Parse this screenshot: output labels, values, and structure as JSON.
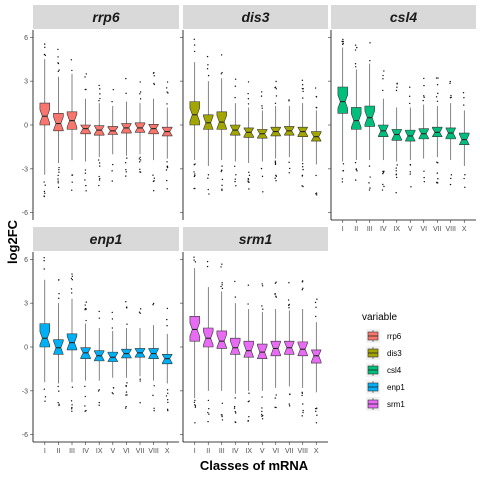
{
  "chart_data": {
    "type": "boxplot",
    "facets": [
      "rrp6",
      "dis3",
      "csl4",
      "enp1",
      "srm1"
    ],
    "categories": [
      "I",
      "II",
      "III",
      "IV",
      "IX",
      "V",
      "VI",
      "VII",
      "VIII",
      "X"
    ],
    "xlabel": "Classes of mRNA",
    "ylabel": "log2FC",
    "ylim": [
      -6.5,
      6.5
    ],
    "yticks": [
      -6,
      -3,
      0,
      3,
      6
    ],
    "yticklabels": [
      "-6",
      "-3",
      "0",
      "3",
      "6"
    ],
    "notched": true,
    "grid": false,
    "legend": {
      "title": "variable",
      "position": "right",
      "entries": [
        "rrp6",
        "dis3",
        "csl4",
        "enp1",
        "srm1"
      ]
    },
    "colors": {
      "rrp6": "#F8766D",
      "dis3": "#A3A500",
      "csl4": "#00BF7D",
      "enp1": "#00B0F6",
      "srm1": "#E76BF3"
    },
    "series": [
      {
        "name": "rrp6",
        "boxes": [
          {
            "min": -3.4,
            "q1": 0.0,
            "median": 0.6,
            "q3": 1.5,
            "max": 4.5
          },
          {
            "min": -2.6,
            "q1": -0.4,
            "median": 0.1,
            "q3": 0.8,
            "max": 3.3
          },
          {
            "min": -2.4,
            "q1": -0.3,
            "median": 0.3,
            "q3": 0.9,
            "max": 3.5
          },
          {
            "min": -2.5,
            "q1": -0.6,
            "median": -0.25,
            "q3": 0.0,
            "max": 1.8
          },
          {
            "min": -2.2,
            "q1": -0.7,
            "median": -0.35,
            "q3": -0.05,
            "max": 1.5
          },
          {
            "min": -2.0,
            "q1": -0.65,
            "median": -0.4,
            "q3": -0.1,
            "max": 1.3
          },
          {
            "min": -2.1,
            "q1": -0.55,
            "median": -0.2,
            "q3": 0.1,
            "max": 1.6
          },
          {
            "min": -2.0,
            "q1": -0.5,
            "median": -0.2,
            "q3": 0.15,
            "max": 1.5
          },
          {
            "min": -2.4,
            "q1": -0.6,
            "median": -0.25,
            "q3": 0.05,
            "max": 1.8
          },
          {
            "min": -2.3,
            "q1": -0.75,
            "median": -0.45,
            "q3": -0.15,
            "max": 1.2
          }
        ]
      },
      {
        "name": "dis3",
        "boxes": [
          {
            "min": -2.4,
            "q1": 0.0,
            "median": 0.7,
            "q3": 1.6,
            "max": 4.3
          },
          {
            "min": -2.8,
            "q1": -0.3,
            "median": 0.15,
            "q3": 0.7,
            "max": 3.0
          },
          {
            "min": -2.4,
            "q1": -0.3,
            "median": 0.2,
            "q3": 0.9,
            "max": 3.2
          },
          {
            "min": -2.5,
            "q1": -0.7,
            "median": -0.35,
            "q3": 0.0,
            "max": 1.5
          },
          {
            "min": -2.6,
            "q1": -0.85,
            "median": -0.5,
            "q3": -0.2,
            "max": 1.2
          },
          {
            "min": -2.5,
            "q1": -0.9,
            "median": -0.6,
            "q3": -0.3,
            "max": 1.0
          },
          {
            "min": -2.3,
            "q1": -0.75,
            "median": -0.45,
            "q3": -0.15,
            "max": 1.3
          },
          {
            "min": -2.2,
            "q1": -0.7,
            "median": -0.4,
            "q3": -0.1,
            "max": 1.3
          },
          {
            "min": -2.5,
            "q1": -0.8,
            "median": -0.45,
            "q3": -0.15,
            "max": 1.5
          },
          {
            "min": -2.7,
            "q1": -1.1,
            "median": -0.8,
            "q3": -0.45,
            "max": 1.0
          }
        ]
      },
      {
        "name": "csl4",
        "boxes": [
          {
            "min": -2.5,
            "q1": 0.8,
            "median": 1.6,
            "q3": 2.6,
            "max": 5.3
          },
          {
            "min": -2.4,
            "q1": -0.3,
            "median": 0.3,
            "q3": 1.2,
            "max": 3.8
          },
          {
            "min": -2.4,
            "q1": -0.1,
            "median": 0.5,
            "q3": 1.3,
            "max": 4.2
          },
          {
            "min": -2.4,
            "q1": -0.8,
            "median": -0.4,
            "q3": 0.0,
            "max": 1.8
          },
          {
            "min": -2.5,
            "q1": -1.05,
            "median": -0.65,
            "q3": -0.3,
            "max": 1.2
          },
          {
            "min": -2.4,
            "q1": -1.1,
            "median": -0.75,
            "q3": -0.35,
            "max": 1.2
          },
          {
            "min": -2.3,
            "q1": -0.95,
            "median": -0.6,
            "q3": -0.25,
            "max": 1.4
          },
          {
            "min": -2.2,
            "q1": -0.8,
            "median": -0.5,
            "q3": -0.15,
            "max": 1.3
          },
          {
            "min": -2.4,
            "q1": -0.95,
            "median": -0.55,
            "q3": -0.2,
            "max": 1.5
          },
          {
            "min": -2.8,
            "q1": -1.35,
            "median": -1.0,
            "q3": -0.55,
            "max": 1.0
          }
        ]
      },
      {
        "name": "enp1",
        "boxes": [
          {
            "min": -2.4,
            "q1": 0.0,
            "median": 0.6,
            "q3": 1.6,
            "max": 4.6
          },
          {
            "min": -2.5,
            "q1": -0.5,
            "median": -0.05,
            "q3": 0.5,
            "max": 3.0
          },
          {
            "min": -2.4,
            "q1": -0.2,
            "median": 0.3,
            "q3": 0.9,
            "max": 3.3
          },
          {
            "min": -2.3,
            "q1": -0.8,
            "median": -0.4,
            "q3": -0.05,
            "max": 1.6
          },
          {
            "min": -2.3,
            "q1": -0.95,
            "median": -0.6,
            "q3": -0.25,
            "max": 1.3
          },
          {
            "min": -2.1,
            "q1": -1.0,
            "median": -0.7,
            "q3": -0.35,
            "max": 1.1
          },
          {
            "min": -2.1,
            "q1": -0.75,
            "median": -0.45,
            "q3": -0.15,
            "max": 1.3
          },
          {
            "min": -2.0,
            "q1": -0.7,
            "median": -0.4,
            "q3": -0.1,
            "max": 1.3
          },
          {
            "min": -2.3,
            "q1": -0.8,
            "median": -0.45,
            "q3": -0.1,
            "max": 1.5
          },
          {
            "min": -2.5,
            "q1": -1.15,
            "median": -0.8,
            "q3": -0.5,
            "max": 0.9
          }
        ]
      },
      {
        "name": "srm1",
        "boxes": [
          {
            "min": -3.5,
            "q1": 0.4,
            "median": 1.2,
            "q3": 2.1,
            "max": 5.4
          },
          {
            "min": -3.0,
            "q1": 0.0,
            "median": 0.6,
            "q3": 1.3,
            "max": 4.1
          },
          {
            "min": -3.0,
            "q1": -0.1,
            "median": 0.4,
            "q3": 1.1,
            "max": 3.8
          },
          {
            "min": -3.2,
            "q1": -0.5,
            "median": -0.05,
            "q3": 0.6,
            "max": 3.0
          },
          {
            "min": -3.0,
            "q1": -0.7,
            "median": -0.25,
            "q3": 0.4,
            "max": 2.6
          },
          {
            "min": -3.0,
            "q1": -0.8,
            "median": -0.35,
            "q3": 0.2,
            "max": 2.4
          },
          {
            "min": -2.8,
            "q1": -0.6,
            "median": -0.1,
            "q3": 0.4,
            "max": 2.6
          },
          {
            "min": -2.7,
            "q1": -0.5,
            "median": -0.05,
            "q3": 0.4,
            "max": 2.5
          },
          {
            "min": -2.8,
            "q1": -0.6,
            "median": -0.15,
            "q3": 0.35,
            "max": 2.6
          },
          {
            "min": -3.1,
            "q1": -1.1,
            "median": -0.6,
            "q3": -0.2,
            "max": 1.7
          }
        ]
      }
    ]
  }
}
